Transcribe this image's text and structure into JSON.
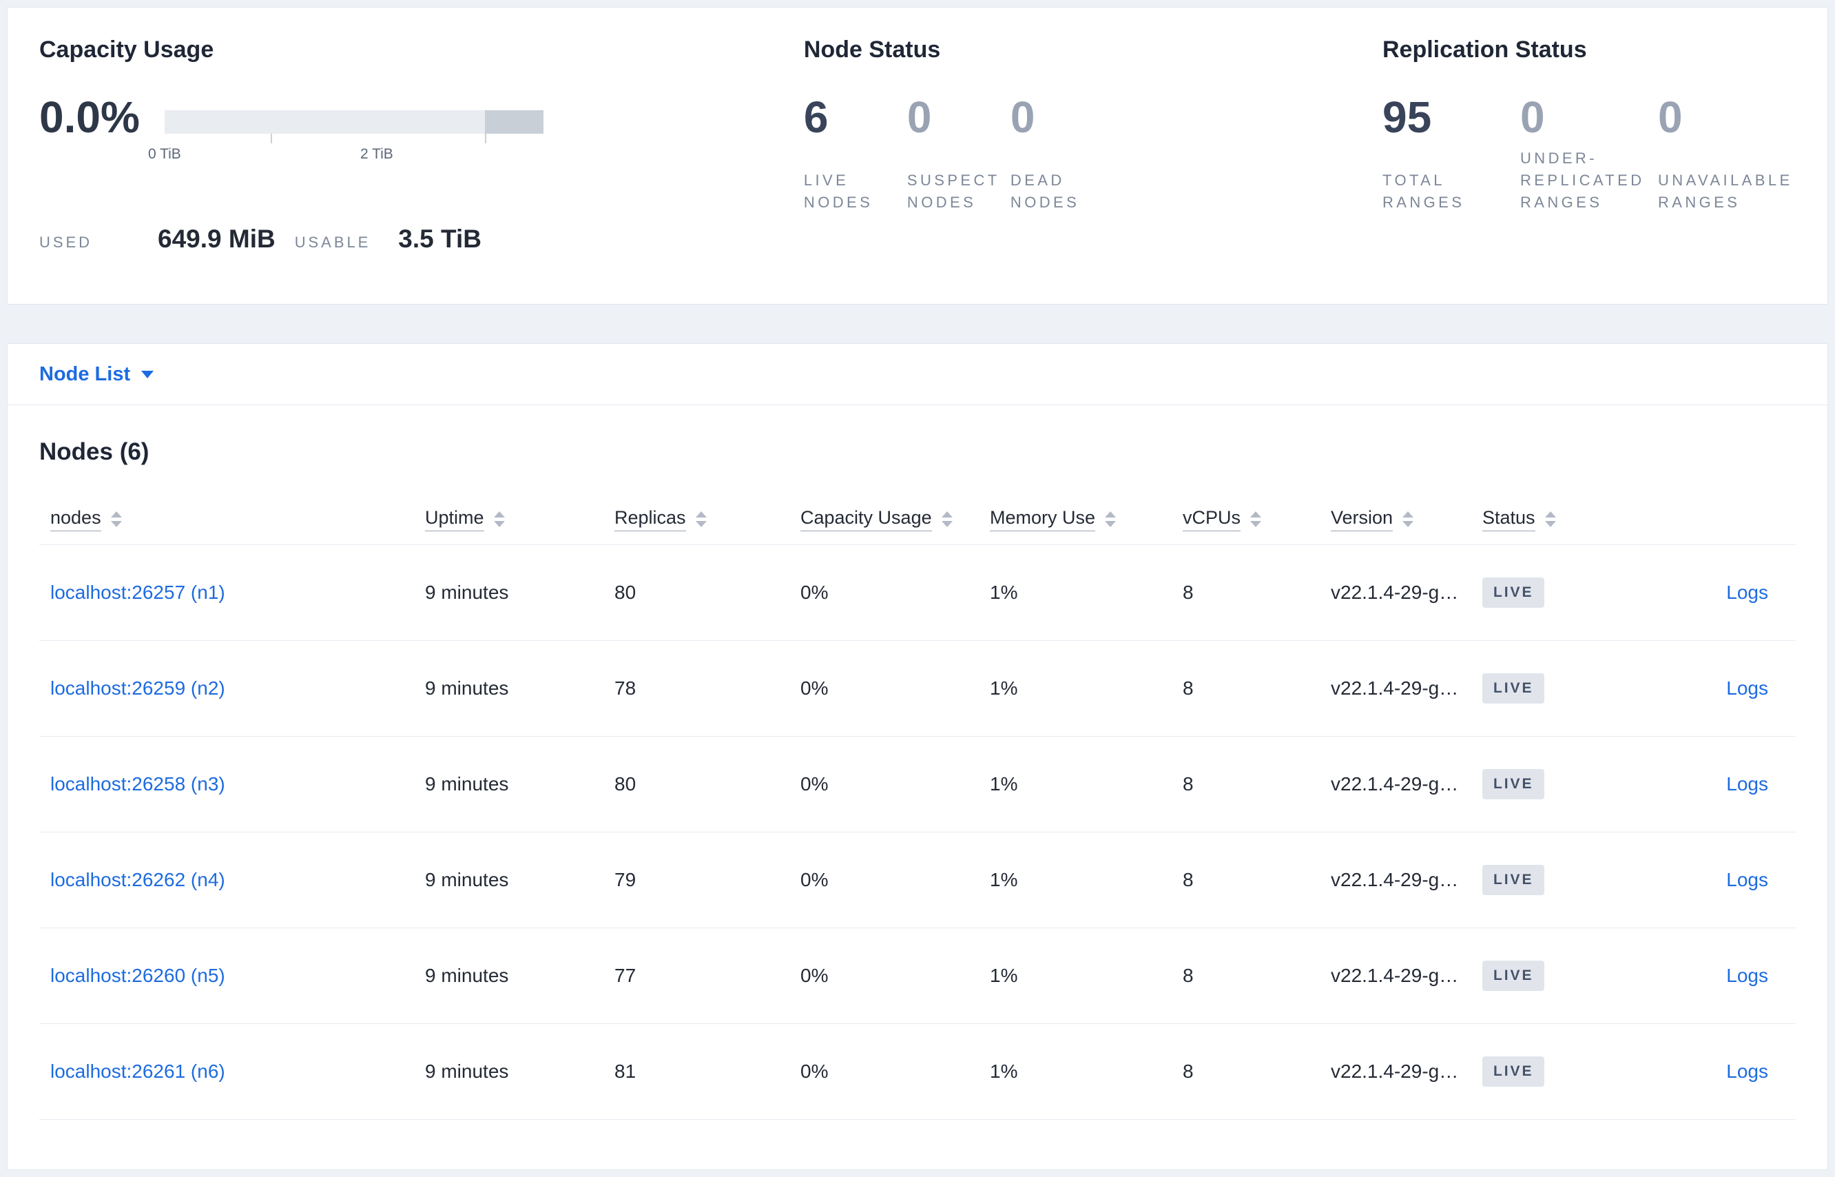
{
  "colors": {
    "link": "#1d6be0",
    "badge_bg": "#e1e5eb",
    "badge_text": "#44516a",
    "stat_emphasis": "#39445a",
    "stat_muted": "#9aa3b3"
  },
  "summary": {
    "capacity": {
      "title": "Capacity Usage",
      "percent": "0.0%",
      "ticks": [
        "0 TiB",
        "2 TiB"
      ],
      "used_label": "USED",
      "used_value": "649.9 MiB",
      "usable_label": "USABLE",
      "usable_value": "3.5 TiB"
    },
    "node_status": {
      "title": "Node Status",
      "stats": [
        {
          "value": "6",
          "label": "LIVE NODES"
        },
        {
          "value": "0",
          "label": "SUSPECT NODES"
        },
        {
          "value": "0",
          "label": "DEAD NODES"
        }
      ]
    },
    "replication": {
      "title": "Replication Status",
      "stats": [
        {
          "value": "95",
          "label": "TOTAL RANGES"
        },
        {
          "value": "0",
          "label": "UNDER-REPLICATED RANGES"
        },
        {
          "value": "0",
          "label": "UNAVAILABLE RANGES"
        }
      ]
    }
  },
  "view_selector": {
    "label": "Node List"
  },
  "nodes_section": {
    "title": "Nodes (6)",
    "columns": [
      "nodes",
      "Uptime",
      "Replicas",
      "Capacity Usage",
      "Memory Use",
      "vCPUs",
      "Version",
      "Status"
    ],
    "rows": [
      {
        "node": "localhost:26257 (n1)",
        "uptime": "9 minutes",
        "replicas": "80",
        "capacity": "0%",
        "memory": "1%",
        "vcpus": "8",
        "version": "v22.1.4-29-g…",
        "status": "LIVE",
        "logs": "Logs"
      },
      {
        "node": "localhost:26259 (n2)",
        "uptime": "9 minutes",
        "replicas": "78",
        "capacity": "0%",
        "memory": "1%",
        "vcpus": "8",
        "version": "v22.1.4-29-g…",
        "status": "LIVE",
        "logs": "Logs"
      },
      {
        "node": "localhost:26258 (n3)",
        "uptime": "9 minutes",
        "replicas": "80",
        "capacity": "0%",
        "memory": "1%",
        "vcpus": "8",
        "version": "v22.1.4-29-g…",
        "status": "LIVE",
        "logs": "Logs"
      },
      {
        "node": "localhost:26262 (n4)",
        "uptime": "9 minutes",
        "replicas": "79",
        "capacity": "0%",
        "memory": "1%",
        "vcpus": "8",
        "version": "v22.1.4-29-g…",
        "status": "LIVE",
        "logs": "Logs"
      },
      {
        "node": "localhost:26260 (n5)",
        "uptime": "9 minutes",
        "replicas": "77",
        "capacity": "0%",
        "memory": "1%",
        "vcpus": "8",
        "version": "v22.1.4-29-g…",
        "status": "LIVE",
        "logs": "Logs"
      },
      {
        "node": "localhost:26261 (n6)",
        "uptime": "9 minutes",
        "replicas": "81",
        "capacity": "0%",
        "memory": "1%",
        "vcpus": "8",
        "version": "v22.1.4-29-g…",
        "status": "LIVE",
        "logs": "Logs"
      }
    ]
  }
}
